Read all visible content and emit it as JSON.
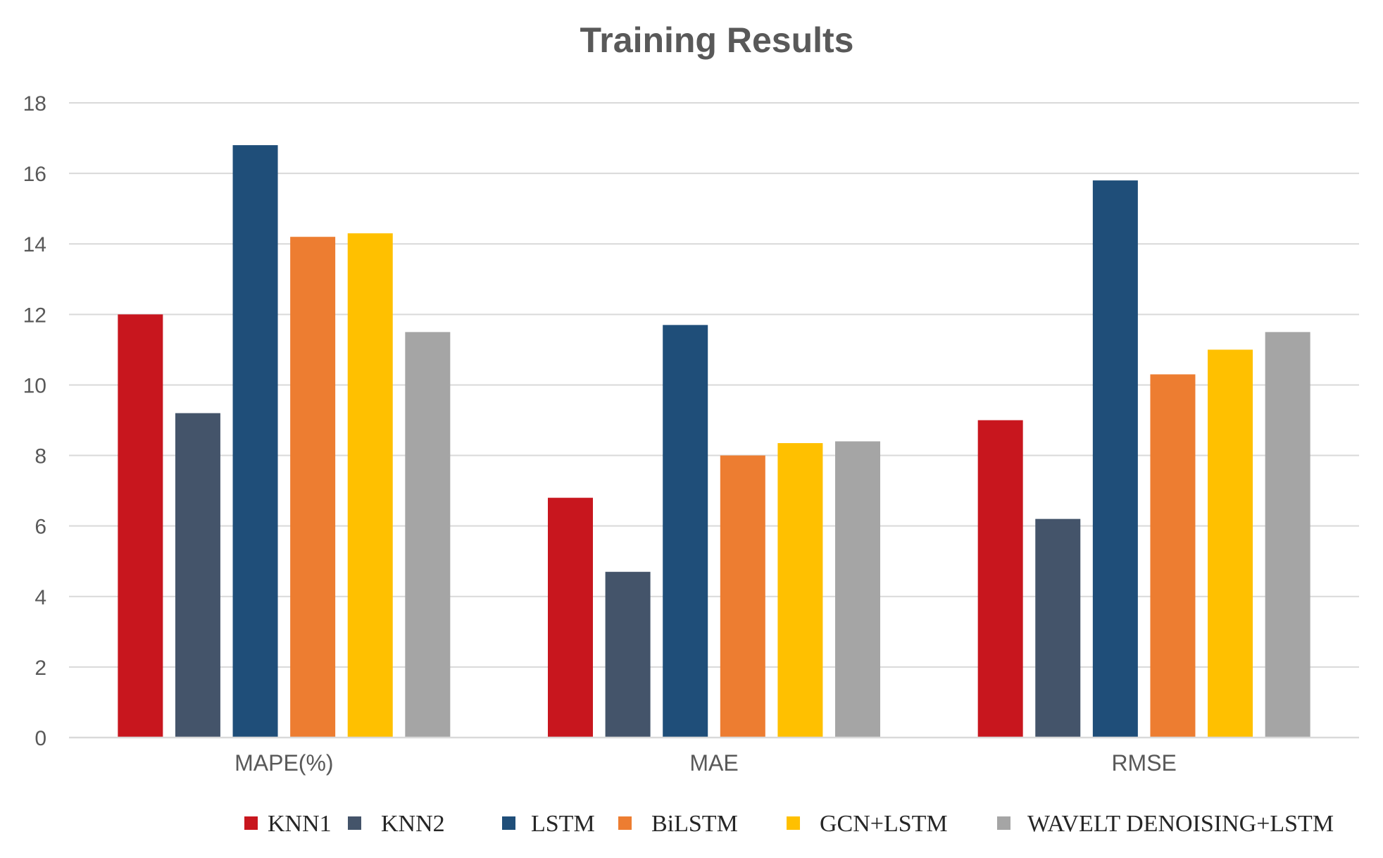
{
  "chart_data": {
    "type": "bar",
    "title": "Training Results",
    "xlabel": "",
    "ylabel": "",
    "ylim": [
      0,
      18
    ],
    "yticks": [
      0,
      2,
      4,
      6,
      8,
      10,
      12,
      14,
      16,
      18
    ],
    "grid": true,
    "legend_position": "bottom",
    "categories": [
      "MAPE(%)",
      "MAE",
      "RMSE"
    ],
    "series": [
      {
        "name": "KNN1",
        "color": "#c8161e",
        "values": [
          12.0,
          6.8,
          9.0
        ]
      },
      {
        "name": "KNN2",
        "color": "#44546a",
        "values": [
          9.2,
          4.7,
          6.2
        ]
      },
      {
        "name": "LSTM",
        "color": "#1f4e79",
        "values": [
          16.8,
          11.7,
          15.8
        ]
      },
      {
        "name": "BiLSTM",
        "color": "#ed7d31",
        "values": [
          14.2,
          8.0,
          10.3
        ]
      },
      {
        "name": "GCN+LSTM",
        "color": "#ffc000",
        "values": [
          14.3,
          8.35,
          11.0
        ]
      },
      {
        "name": "WAVELT DENOISING+LSTM",
        "color": "#a5a5a5",
        "values": [
          11.5,
          8.4,
          11.5
        ]
      }
    ]
  }
}
